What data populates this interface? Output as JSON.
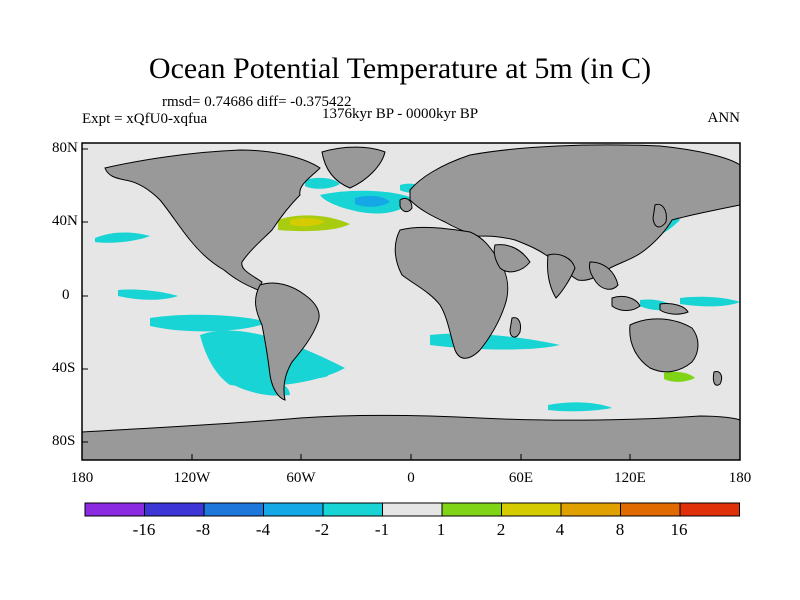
{
  "title": "Ocean Potential Temperature at 5m (in C)",
  "stats": "rmsd= 0.74686 diff= -0.375422",
  "experiment": "Expt = xQfU0-xqfua",
  "period": "1376kyr BP - 0000kyr BP",
  "season": "ANN",
  "y_ticks": [
    "80N",
    "40N",
    "0",
    "40S",
    "80S"
  ],
  "x_ticks": [
    "180",
    "120W",
    "60W",
    "0",
    "60E",
    "120E",
    "180"
  ],
  "colorbar": {
    "labels": [
      "-16",
      "-8",
      "-4",
      "-2",
      "-1",
      "1",
      "2",
      "4",
      "8",
      "16"
    ],
    "colors": [
      "#8a2be2",
      "#3d35d6",
      "#1e78dc",
      "#14a8e6",
      "#18d4d4",
      "#e6e6e6",
      "#7fd416",
      "#d4cc00",
      "#e0a000",
      "#e06a00",
      "#e0300a"
    ]
  },
  "land_color": "#999999",
  "ocean_color": "#e6e6e6"
}
